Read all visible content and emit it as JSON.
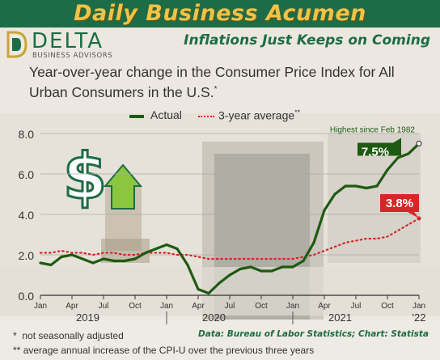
{
  "banner": {
    "title": "Daily Business Acumen"
  },
  "logo": {
    "wordmark": "DELTA",
    "tagline": "BUSINESS ADVISORS"
  },
  "subheadline": "Inflations Just Keeps on Coming",
  "colors": {
    "brand_green": "#1c6d47",
    "banner_gold": "#f0c247",
    "actual": "#1f5a12",
    "average": "#d42727"
  },
  "chart_data": {
    "type": "line",
    "title": "Year-over-year change in the Consumer Price Index for All Urban Consumers in the U.S.",
    "title_mark": "*",
    "ylim": [
      0,
      8
    ],
    "yticks": [
      "0.0",
      "2.0",
      "4.0",
      "6.0",
      "8.0"
    ],
    "grid": "horizontal",
    "legend_position": "top-center",
    "x": [
      "2019-01",
      "2019-02",
      "2019-03",
      "2019-04",
      "2019-05",
      "2019-06",
      "2019-07",
      "2019-08",
      "2019-09",
      "2019-10",
      "2019-11",
      "2019-12",
      "2020-01",
      "2020-02",
      "2020-03",
      "2020-04",
      "2020-05",
      "2020-06",
      "2020-07",
      "2020-08",
      "2020-09",
      "2020-10",
      "2020-11",
      "2020-12",
      "2021-01",
      "2021-02",
      "2021-03",
      "2021-04",
      "2021-05",
      "2021-06",
      "2021-07",
      "2021-08",
      "2021-09",
      "2021-10",
      "2021-11",
      "2021-12",
      "2022-01"
    ],
    "xtick_labels": [
      {
        "label": "Jan",
        "index": 0
      },
      {
        "label": "Apr",
        "index": 3
      },
      {
        "label": "Jul",
        "index": 6
      },
      {
        "label": "Oct",
        "index": 9
      },
      {
        "label": "Jan",
        "index": 12
      },
      {
        "label": "Apr",
        "index": 15
      },
      {
        "label": "Jul",
        "index": 18
      },
      {
        "label": "Oct",
        "index": 21
      },
      {
        "label": "Jan",
        "index": 24
      },
      {
        "label": "Apr",
        "index": 27
      },
      {
        "label": "Jul",
        "index": 30
      },
      {
        "label": "Oct",
        "index": 33
      },
      {
        "label": "Jan",
        "index": 36
      }
    ],
    "year_labels": [
      {
        "label": "2019",
        "index": 4.5
      },
      {
        "label": "2020",
        "index": 16.5
      },
      {
        "label": "2021",
        "index": 28.5
      },
      {
        "label": "'22",
        "index": 36
      }
    ],
    "series": [
      {
        "name": "Actual",
        "style": "solid",
        "values": [
          1.6,
          1.5,
          1.9,
          2.0,
          1.8,
          1.6,
          1.8,
          1.7,
          1.7,
          1.8,
          2.1,
          2.3,
          2.5,
          2.3,
          1.5,
          0.3,
          0.1,
          0.6,
          1.0,
          1.3,
          1.4,
          1.2,
          1.2,
          1.4,
          1.4,
          1.7,
          2.6,
          4.2,
          5.0,
          5.4,
          5.4,
          5.3,
          5.4,
          6.2,
          6.8,
          7.0,
          7.5
        ]
      },
      {
        "name": "3-year average",
        "name_mark": "**",
        "style": "dotted",
        "values": [
          2.1,
          2.1,
          2.2,
          2.1,
          2.1,
          2.0,
          2.1,
          2.1,
          2.0,
          2.0,
          2.1,
          2.1,
          2.1,
          2.0,
          2.0,
          1.9,
          1.8,
          1.8,
          1.8,
          1.8,
          1.8,
          1.8,
          1.8,
          1.8,
          1.8,
          1.9,
          2.0,
          2.2,
          2.4,
          2.6,
          2.7,
          2.8,
          2.8,
          2.9,
          3.2,
          3.5,
          3.8
        ]
      }
    ],
    "annotations": [
      {
        "text": "7.5%",
        "series": "Actual",
        "index": 36
      },
      {
        "text": "3.8%",
        "series": "3-year average",
        "index": 36
      },
      {
        "text": "Highest since Feb 1982"
      }
    ]
  },
  "footnotes": [
    {
      "mark": "*",
      "text": "not seasonally adjusted"
    },
    {
      "mark": "**",
      "text": "average annual increase of the CPI-U over the previous three years"
    }
  ],
  "source": "Data: Bureau of Labor Statistics; Chart: Statista"
}
